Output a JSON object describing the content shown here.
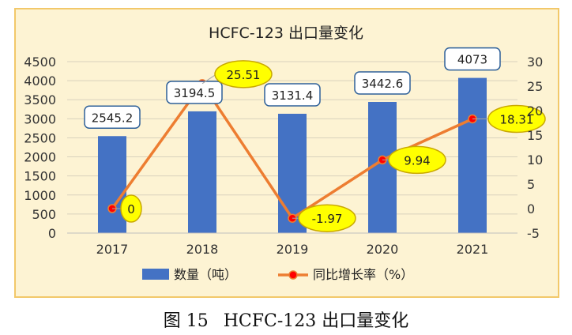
{
  "chart_data": {
    "type": "bar",
    "title": "HCFC-123 出口量变化",
    "categories": [
      "2017",
      "2018",
      "2019",
      "2020",
      "2021"
    ],
    "series": [
      {
        "name": "数量（吨）",
        "type": "bar",
        "axis": "left",
        "values": [
          2545.2,
          3194.5,
          3131.4,
          3442.6,
          4073
        ],
        "labels": [
          "2545.2",
          "3194.5",
          "3131.4",
          "3442.6",
          "4073"
        ]
      },
      {
        "name": "同比增长率（%）",
        "type": "line",
        "axis": "right",
        "values": [
          0,
          25.51,
          -1.97,
          9.94,
          18.31
        ],
        "labels": [
          "0",
          "25.51",
          "-1.97",
          "9.94",
          "18.31"
        ]
      }
    ],
    "ylim_left": [
      0,
      4500
    ],
    "yticks_left": [
      "0",
      "500",
      "1000",
      "1500",
      "2000",
      "2500",
      "3000",
      "3500",
      "4000",
      "4500"
    ],
    "ylim_right": [
      -5,
      30
    ],
    "yticks_right": [
      "-5",
      "0",
      "5",
      "10",
      "15",
      "20",
      "25",
      "30"
    ],
    "grid": true,
    "legend": "bottom",
    "colors": {
      "bar": "#4472c4",
      "line": "#ed7d31",
      "line_marker": "#ff0000",
      "callout_fill": "#ffff00",
      "frame": "#f2c86a",
      "background": "#fdf3d3"
    }
  },
  "caption": {
    "figure_number": "图 15",
    "text": "HCFC-123 出口量变化"
  }
}
